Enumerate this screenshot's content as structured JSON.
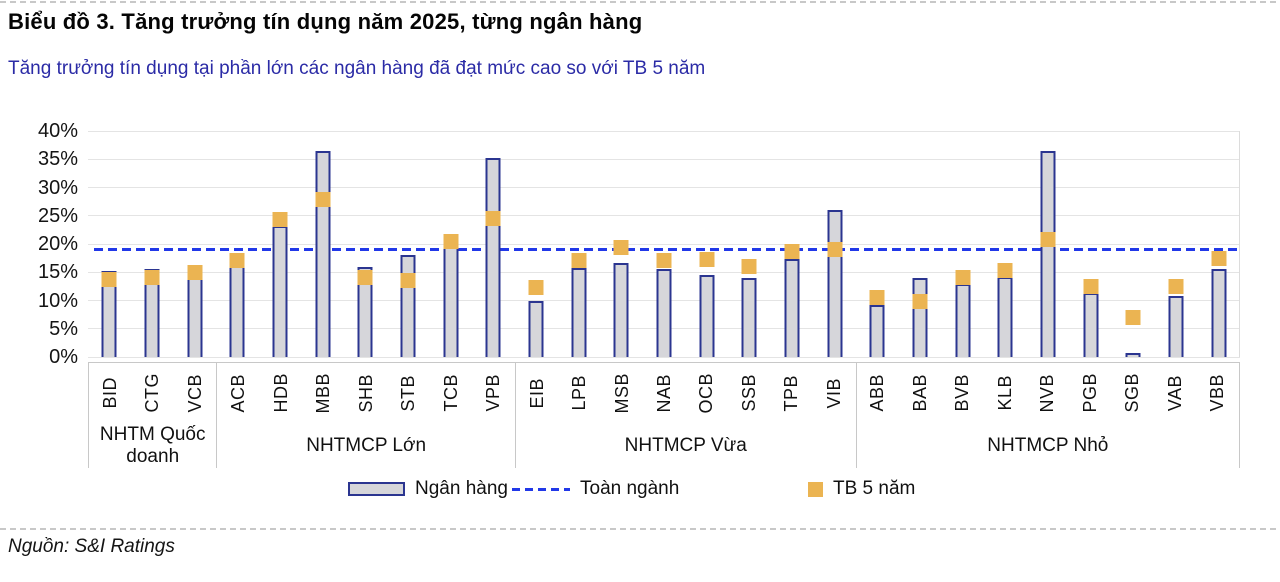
{
  "header": {
    "title": "Biểu đồ 3. Tăng trưởng tín dụng năm 2025, từng ngân hàng",
    "subtitle": "Tăng trưởng tín dụng tại phần lớn các ngân hàng đã đạt mức cao so với TB 5 năm"
  },
  "footer": {
    "source": "Nguồn: S&I Ratings"
  },
  "colors": {
    "subtitle_text": "#2B2BA6",
    "bar_fill": "#D6D6DA",
    "bar_border": "#2B3590",
    "marker": "#EBB452",
    "industry_line": "#2138E8",
    "gridline": "#E4E4E4",
    "axis_box_border": "#C8C8C8"
  },
  "legend": [
    {
      "type": "bar",
      "label": "Ngân hàng"
    },
    {
      "type": "dash",
      "label": "Toàn ngành"
    },
    {
      "type": "square",
      "label": "TB 5 năm"
    }
  ],
  "chart_data": {
    "type": "bar",
    "title": "Tăng trưởng tín dụng năm 2025, từng ngân hàng",
    "ylabel": "",
    "xlabel": "",
    "ylim": [
      0,
      40
    ],
    "ytick_step": 5,
    "ytick_format": "percent",
    "grid": true,
    "legend_position": "bottom",
    "categories": [
      "BID",
      "CTG",
      "VCB",
      "ACB",
      "HDB",
      "MBB",
      "SHB",
      "STB",
      "TCB",
      "VPB",
      "EIB",
      "LPB",
      "MSB",
      "NAB",
      "OCB",
      "SSB",
      "TPB",
      "VIB",
      "ABB",
      "BAB",
      "BVB",
      "KLB",
      "NVB",
      "PGB",
      "SGB",
      "VAB",
      "VBB"
    ],
    "groups": [
      {
        "label": "NHTM Quốc doanh",
        "span": 3
      },
      {
        "label": "NHTMCP Lớn",
        "span": 7
      },
      {
        "label": "NHTMCP Vừa",
        "span": 8
      },
      {
        "label": "NHTMCP Nhỏ",
        "span": 9
      }
    ],
    "series": [
      {
        "name": "Ngân hàng",
        "type": "bar",
        "values": [
          15.2,
          15.5,
          14.0,
          18.4,
          23.2,
          36.5,
          16.0,
          18.0,
          21.2,
          35.3,
          10.0,
          15.7,
          16.7,
          15.6,
          14.5,
          14.0,
          17.4,
          26.0,
          9.2,
          14.0,
          13.0,
          14.2,
          36.4,
          11.3,
          0.7,
          10.8,
          15.5
        ]
      },
      {
        "name": "TB 5 năm",
        "type": "square-marker",
        "values": [
          13.8,
          14.0,
          15.0,
          17.0,
          24.4,
          27.8,
          14.0,
          13.5,
          20.4,
          24.5,
          12.3,
          17.0,
          19.3,
          17.0,
          17.3,
          16.0,
          18.6,
          19.0,
          10.5,
          9.8,
          14.0,
          15.4,
          20.8,
          12.5,
          7.0,
          12.5,
          17.4
        ]
      },
      {
        "name": "Toàn ngành",
        "type": "dashed-hline",
        "value": 19.0
      }
    ]
  }
}
